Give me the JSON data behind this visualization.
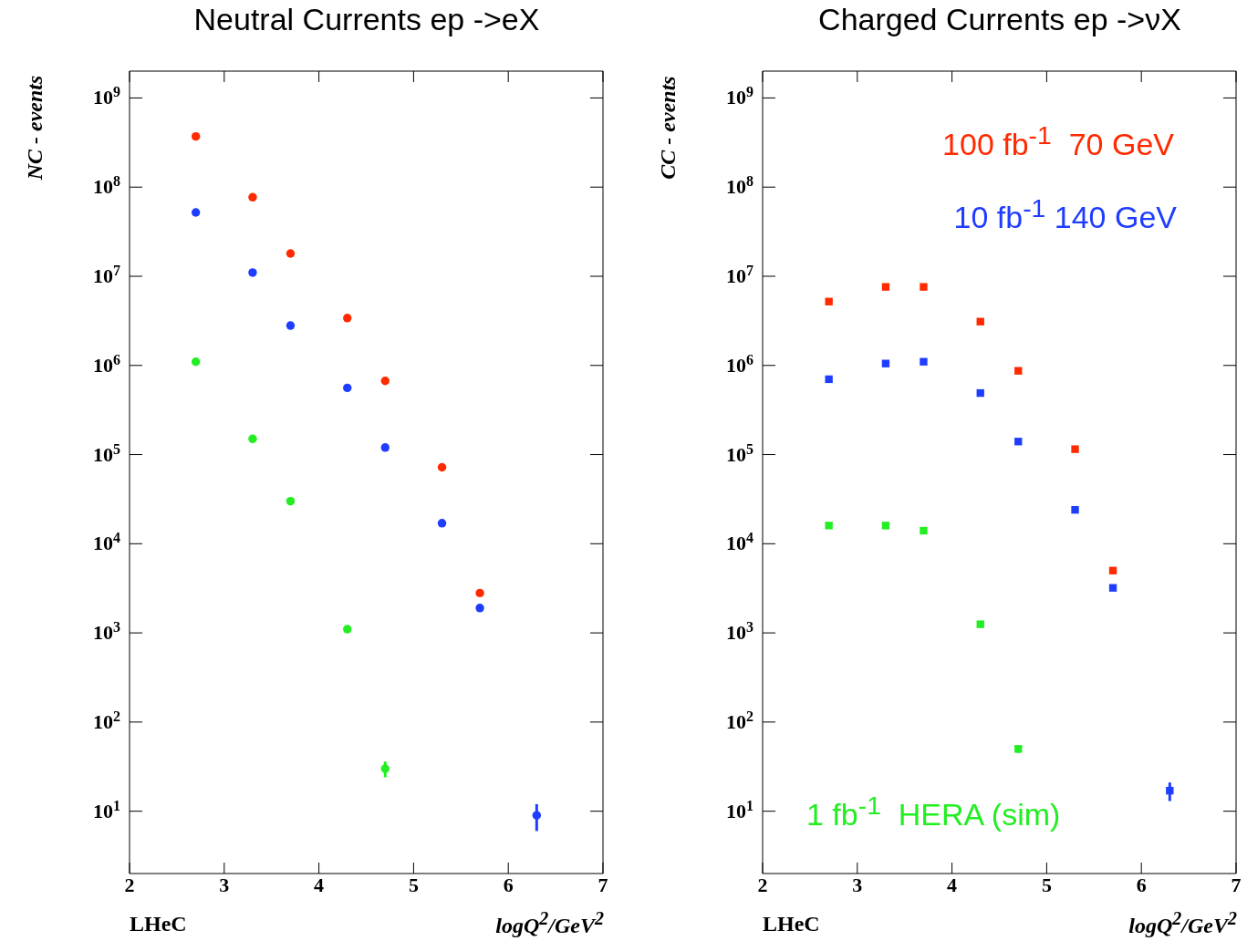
{
  "chart_data": [
    {
      "type": "scatter",
      "title": "Neutral Currents ep ->eX",
      "xlabel": "logQ$^{2}$/GeV$^{2}$",
      "ylabel": "NC - events",
      "annotations": [
        "LHeC"
      ],
      "log": "y",
      "marker": "circle",
      "xlim": [
        2,
        7
      ],
      "xticks": [
        2,
        3,
        4,
        5,
        6,
        7
      ],
      "ylim": [
        2,
        2000000000
      ],
      "yticks": [
        {
          "value": 10,
          "label": "10$^{1}$"
        },
        {
          "value": 100,
          "label": "10$^{2}$"
        },
        {
          "value": 1000,
          "label": "10$^{3}$"
        },
        {
          "value": 10000,
          "label": "10$^{4}$"
        },
        {
          "value": 100000,
          "label": "10$^{5}$"
        },
        {
          "value": 1000000,
          "label": "10$^{6}$"
        },
        {
          "value": 10000000,
          "label": "10$^{7}$"
        },
        {
          "value": 100000000,
          "label": "10$^{8}$"
        },
        {
          "value": 1000000000,
          "label": "10$^{9}$"
        }
      ],
      "series": [
        {
          "color": "#ff2a00",
          "x": [
            2.7,
            3.3,
            3.7,
            4.3,
            4.7,
            5.3,
            5.7
          ],
          "values": [
            370000000,
            77000000,
            18000000,
            3400000,
            670000,
            72000,
            2800
          ]
        },
        {
          "color": "#1f3dff",
          "x": [
            2.7,
            3.3,
            3.7,
            4.3,
            4.7,
            5.3,
            5.7,
            6.3
          ],
          "values": [
            52000000,
            11000000,
            2800000,
            560000,
            120000,
            17000,
            1900,
            9
          ],
          "errors": [
            null,
            null,
            null,
            null,
            null,
            null,
            null,
            3
          ]
        },
        {
          "color": "#22ee22",
          "x": [
            2.7,
            3.3,
            3.7,
            4.3,
            4.7
          ],
          "values": [
            1100000,
            150000,
            30000,
            1100,
            30
          ],
          "errors": [
            null,
            null,
            null,
            null,
            6
          ]
        }
      ]
    },
    {
      "type": "scatter",
      "title": "Charged Currents ep ->νX",
      "xlabel": "logQ$^{2}$/GeV$^{2}$",
      "ylabel": "CC - events",
      "annotations": [
        "LHeC"
      ],
      "log": "y",
      "marker": "square",
      "xlim": [
        2,
        7
      ],
      "xticks": [
        2,
        3,
        4,
        5,
        6,
        7
      ],
      "ylim": [
        2,
        2000000000
      ],
      "yticks": [
        {
          "value": 10,
          "label": "10$^{1}$"
        },
        {
          "value": 100,
          "label": "10$^{2}$"
        },
        {
          "value": 1000,
          "label": "10$^{3}$"
        },
        {
          "value": 10000,
          "label": "10$^{4}$"
        },
        {
          "value": 100000,
          "label": "10$^{5}$"
        },
        {
          "value": 1000000,
          "label": "10$^{6}$"
        },
        {
          "value": 10000000,
          "label": "10$^{7}$"
        },
        {
          "value": 100000000,
          "label": "10$^{8}$"
        },
        {
          "value": 1000000000,
          "label": "10$^{9}$"
        }
      ],
      "series": [
        {
          "name": "100 fb$^{-1}$  70 GeV",
          "color": "#ff2a00",
          "x": [
            2.7,
            3.3,
            3.7,
            4.3,
            4.7,
            5.3,
            5.7
          ],
          "values": [
            5200000,
            7600000,
            7600000,
            3100000,
            870000,
            115000,
            5000
          ]
        },
        {
          "name": "10 fb$^{-1}$ 140 GeV",
          "color": "#1f3dff",
          "x": [
            2.7,
            3.3,
            3.7,
            4.3,
            4.7,
            5.3,
            5.7,
            6.3
          ],
          "values": [
            700000,
            1050000,
            1100000,
            490000,
            140000,
            24000,
            3200,
            17
          ],
          "errors": [
            null,
            null,
            null,
            null,
            null,
            null,
            null,
            4
          ]
        },
        {
          "name": "1 fb$^{-1}$  HERA (sim)",
          "color": "#22ee22",
          "x": [
            2.7,
            3.3,
            3.7,
            4.3,
            4.7
          ],
          "values": [
            16000,
            16000,
            14000,
            1250,
            50
          ],
          "errors": [
            null,
            null,
            null,
            null,
            5
          ]
        }
      ]
    }
  ]
}
